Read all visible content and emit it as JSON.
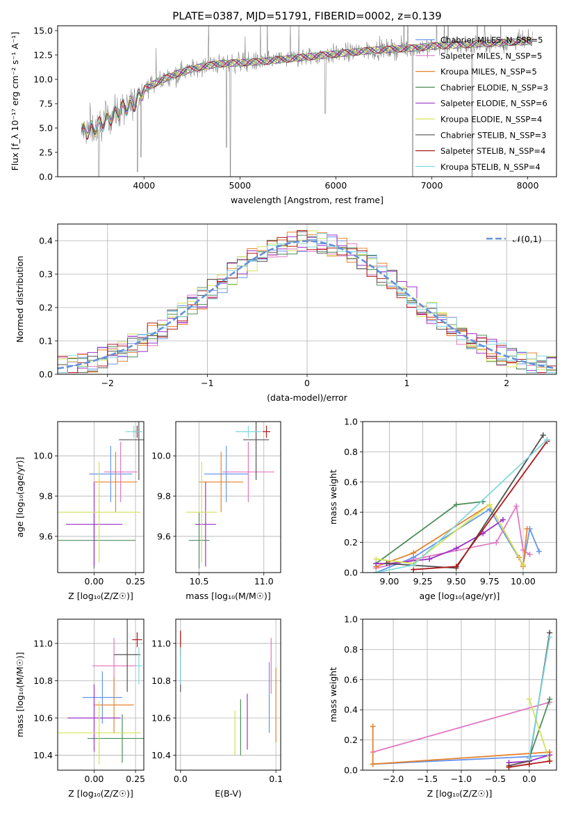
{
  "figure": {
    "title": "PLATE=0387, MJD=51791, FIBERID=0002, z=0.139"
  },
  "colors": {
    "chabrier_miles": "#6495ED",
    "salpeter_miles": "#E377C2",
    "kroupa_miles": "#E6822A",
    "chabrier_elodie": "#4C8C5A",
    "salpeter_elodie": "#9B30C8",
    "kroupa_elodie": "#D4E157",
    "chabrier_stelib": "#505050",
    "salpeter_stelib": "#B01818",
    "kroupa_stelib": "#7FD8DE",
    "data": "#808080",
    "normal_curve": "#6490D8",
    "grid": "#b0b0b0"
  },
  "chart_data": [
    {
      "id": "spectrum",
      "type": "line",
      "title": "PLATE=0387, MJD=51791, FIBERID=0002, z=0.139",
      "xlabel": "wavelength [Angstrom, rest frame]",
      "ylabel": "Flux [f_λ 10⁻¹⁷ erg cm⁻² s⁻¹ A⁻¹]",
      "xlim": [
        3100,
        8300
      ],
      "ylim": [
        0,
        15.5
      ],
      "xticks": [
        "4000",
        "5000",
        "6000",
        "7000",
        "8000"
      ],
      "yticks": [
        "0.0",
        "2.5",
        "5.0",
        "7.5",
        "10.0",
        "12.5",
        "15.0"
      ],
      "grid": false,
      "legend_position": "top-right",
      "legend": [
        "Chabrier MILES, N_SSP=5",
        "Salpeter MILES, N_SSP=5",
        "Kroupa MILES, N_SSP=5",
        "Chabrier ELODIE, N_SSP=3",
        "Salpeter ELODIE, N_SSP=6",
        "Kroupa ELODIE, N_SSP=4",
        "Chabrier STELIB, N_SSP=3",
        "Salpeter STELIB, N_SSP=4",
        "Kroupa STELIB, N_SSP=4"
      ],
      "continuum_x": [
        3350,
        3500,
        3700,
        3900,
        4000,
        4200,
        4400,
        4600,
        4800,
        5000,
        5200,
        5400,
        5600,
        5800,
        6000,
        6200,
        6400,
        6600,
        6800,
        7000,
        7200,
        7400,
        7600,
        7800,
        8050
      ],
      "continuum_y": [
        4.6,
        5.0,
        6.5,
        7.6,
        9.0,
        10.0,
        10.8,
        11.3,
        11.6,
        11.7,
        11.8,
        12.0,
        12.2,
        12.4,
        12.6,
        12.8,
        13.0,
        13.1,
        13.2,
        13.4,
        13.5,
        13.6,
        13.7,
        13.8,
        13.9
      ],
      "absorption_lines": [
        [
          3530,
          0.0
        ],
        [
          3933,
          0.5
        ],
        [
          3968,
          2.0
        ],
        [
          4861,
          3.0
        ],
        [
          4900,
          0.0
        ],
        [
          5890,
          6.5
        ],
        [
          6800,
          0.0
        ],
        [
          7420,
          0.0
        ]
      ]
    },
    {
      "id": "residuals",
      "type": "histogram",
      "xlabel": "(data-model)/error",
      "ylabel": "Normed distribution",
      "xlim": [
        -2.5,
        2.5
      ],
      "ylim": [
        0,
        0.45
      ],
      "xticks": [
        "−2",
        "−1",
        "0",
        "1",
        "2"
      ],
      "yticks": [
        "0.0",
        "0.1",
        "0.2",
        "0.3",
        "0.4"
      ],
      "grid": true,
      "legend_position": "top-right",
      "legend": [
        "𝒩(0,1)"
      ],
      "bin_width": 0.1
    },
    {
      "id": "age_vs_Z",
      "type": "scatter",
      "xlabel": "Z [log₁₀(Z/Z☉)]",
      "ylabel": "age  [log₁₀(age/yr)]",
      "xlim": [
        -0.22,
        0.3
      ],
      "ylim": [
        9.42,
        10.17
      ],
      "xticks": [
        "0.00",
        "0.25"
      ],
      "yticks": [
        "9.6",
        "9.8",
        "10.0"
      ],
      "grid": true,
      "errorbars": [
        {
          "x": 0.1,
          "xerr": 0.13,
          "y": 9.91,
          "yerr": 0.14
        },
        {
          "x": 0.16,
          "xerr": 0.1,
          "y": 9.92,
          "yerr": 0.15
        },
        {
          "x": 0.13,
          "xerr": 0.13,
          "y": 9.87,
          "yerr": 0.15
        },
        {
          "x": 0.0,
          "xerr": 0.25,
          "y": 9.58,
          "yerr": 0.14
        },
        {
          "x": 0.0,
          "xerr": 0.17,
          "y": 9.66,
          "yerr": 0.21
        },
        {
          "x": 0.03,
          "xerr": 0.25,
          "y": 9.72,
          "yerr": 0.25
        },
        {
          "x": 0.27,
          "xerr": 0.12,
          "y": 10.08,
          "yerr": 0.2
        },
        {
          "x": 0.26,
          "xerr": 0.02,
          "y": 10.12,
          "yerr": 0.03
        },
        {
          "x": 0.24,
          "xerr": 0.05,
          "y": 10.12,
          "yerr": 0.03
        }
      ]
    },
    {
      "id": "age_vs_mass",
      "type": "scatter",
      "xlabel": "mass [log₁₀(M/M☉)]",
      "ylabel": "",
      "xlim": [
        10.32,
        11.13
      ],
      "ylim": [
        9.42,
        10.17
      ],
      "xticks": [
        "10.5",
        "11.0"
      ],
      "yticks": [
        "9.6",
        "9.8",
        "10.0"
      ],
      "grid": true,
      "errorbars": [
        {
          "x": 10.71,
          "xerr": 0.17,
          "y": 9.91,
          "yerr": 0.14
        },
        {
          "x": 10.88,
          "xerr": 0.2,
          "y": 9.92,
          "yerr": 0.15
        },
        {
          "x": 10.67,
          "xerr": 0.17,
          "y": 9.87,
          "yerr": 0.15
        },
        {
          "x": 10.5,
          "xerr": 0.08,
          "y": 9.58,
          "yerr": 0.14
        },
        {
          "x": 10.55,
          "xerr": 0.08,
          "y": 9.66,
          "yerr": 0.21
        },
        {
          "x": 10.52,
          "xerr": 0.12,
          "y": 9.72,
          "yerr": 0.25
        },
        {
          "x": 10.94,
          "xerr": 0.1,
          "y": 10.08,
          "yerr": 0.2
        },
        {
          "x": 11.02,
          "xerr": 0.03,
          "y": 10.12,
          "yerr": 0.03
        },
        {
          "x": 10.88,
          "xerr": 0.1,
          "y": 10.12,
          "yerr": 0.03
        }
      ]
    },
    {
      "id": "weight_vs_age",
      "type": "line",
      "xlabel": "age  [log₁₀(age/yr)]",
      "ylabel": "mass weight",
      "xlim": [
        8.8,
        10.25
      ],
      "ylim": [
        0,
        1.0
      ],
      "xticks": [
        "9.00",
        "9.25",
        "9.50",
        "9.75",
        "10.00"
      ],
      "yticks": [
        "0.0",
        "0.2",
        "0.4",
        "0.6",
        "0.8",
        "1.0"
      ],
      "grid": true,
      "series": [
        {
          "x": [
            8.9,
            9.18,
            9.75,
            10.0,
            10.05,
            10.12
          ],
          "y": [
            0.0,
            0.1,
            0.42,
            0.05,
            0.29,
            0.14
          ]
        },
        {
          "x": [
            8.9,
            9.25,
            9.8,
            9.95,
            10.0,
            10.05
          ],
          "y": [
            0.03,
            0.1,
            0.2,
            0.44,
            0.15,
            0.12
          ]
        },
        {
          "x": [
            8.9,
            9.18,
            9.75,
            9.97,
            10.0,
            10.03
          ],
          "y": [
            0.04,
            0.13,
            0.45,
            0.1,
            0.04,
            0.29
          ]
        },
        {
          "x": [
            8.9,
            9.5,
            9.7
          ],
          "y": [
            0.06,
            0.45,
            0.47
          ]
        },
        {
          "x": [
            8.9,
            9.0,
            9.3,
            9.5,
            9.7,
            9.85
          ],
          "y": [
            0.06,
            0.06,
            0.09,
            0.16,
            0.26,
            0.35
          ]
        },
        {
          "x": [
            8.9,
            9.18,
            9.75,
            10.0
          ],
          "y": [
            0.09,
            0.06,
            0.45,
            0.05
          ]
        },
        {
          "x": [
            8.98,
            9.5,
            10.15
          ],
          "y": [
            0.06,
            0.03,
            0.91
          ]
        },
        {
          "x": [
            9.18,
            9.5,
            10.18
          ],
          "y": [
            0.02,
            0.04,
            0.87
          ]
        },
        {
          "x": [
            8.9,
            9.18,
            10.18
          ],
          "y": [
            0.0,
            0.05,
            0.88
          ]
        }
      ]
    },
    {
      "id": "mass_vs_Z",
      "type": "scatter",
      "xlabel": "Z [log₁₀(Z/Z☉)]",
      "ylabel": "mass [log₁₀(M/M☉)]",
      "xlim": [
        -0.22,
        0.3
      ],
      "ylim": [
        10.32,
        11.13
      ],
      "xticks": [
        "0.00",
        "0.25"
      ],
      "yticks": [
        "10.4",
        "10.6",
        "10.8",
        "11.0"
      ],
      "grid": true,
      "errorbars": [
        {
          "x": 0.05,
          "xerr": 0.12,
          "y": 10.71,
          "yerr": 0.14
        },
        {
          "x": 0.12,
          "xerr": 0.13,
          "y": 10.88,
          "yerr": 0.15
        },
        {
          "x": 0.12,
          "xerr": 0.12,
          "y": 10.67,
          "yerr": 0.15
        },
        {
          "x": 0.17,
          "xerr": 0.21,
          "y": 10.49,
          "yerr": 0.13
        },
        {
          "x": 0.0,
          "xerr": 0.16,
          "y": 10.6,
          "yerr": 0.18
        },
        {
          "x": 0.03,
          "xerr": 0.25,
          "y": 10.52,
          "yerr": 0.17
        },
        {
          "x": 0.2,
          "xerr": 0.08,
          "y": 10.94,
          "yerr": 0.2
        },
        {
          "x": 0.26,
          "xerr": 0.03,
          "y": 11.02,
          "yerr": 0.04
        },
        {
          "x": 0.27,
          "xerr": 0.02,
          "y": 10.88,
          "yerr": 0.1
        }
      ]
    },
    {
      "id": "mass_vs_ebv",
      "type": "scatter",
      "xlabel": "E(B-V)",
      "ylabel": "",
      "xlim": [
        -0.005,
        0.105
      ],
      "ylim": [
        10.32,
        11.13
      ],
      "xticks": [
        "0.0",
        "0.1"
      ],
      "yticks": [
        "10.4",
        "10.6",
        "10.8",
        "11.0"
      ],
      "grid": true,
      "errorbars": [
        {
          "x": 0.093,
          "xerr": 0,
          "y": 10.71,
          "yerr": 0.19
        },
        {
          "x": 0.095,
          "xerr": 0,
          "y": 10.88,
          "yerr": 0.15
        },
        {
          "x": 0.1,
          "xerr": 0,
          "y": 10.67,
          "yerr": 0.2
        },
        {
          "x": 0.063,
          "xerr": 0,
          "y": 10.55,
          "yerr": 0.15
        },
        {
          "x": 0.07,
          "xerr": 0,
          "y": 10.58,
          "yerr": 0.15
        },
        {
          "x": 0.057,
          "xerr": 0,
          "y": 10.52,
          "yerr": 0.12
        },
        {
          "x": 0.0,
          "xerr": 0,
          "y": 10.9,
          "yerr": 0.16
        },
        {
          "x": 0.0,
          "xerr": 0,
          "y": 11.0,
          "yerr": 0.07
        },
        {
          "x": 0.0,
          "xerr": 0,
          "y": 10.88,
          "yerr": 0.1
        }
      ]
    },
    {
      "id": "weight_vs_Z",
      "type": "line",
      "xlabel": "Z [log₁₀(Z/Z☉)]",
      "ylabel": "mass weight",
      "xlim": [
        -2.45,
        0.4
      ],
      "ylim": [
        0,
        1.0
      ],
      "xticks": [
        "−2.0",
        "−1.5",
        "−1.0",
        "−0.5",
        "0.0"
      ],
      "yticks": [
        "0.0",
        "0.2",
        "0.4",
        "0.6",
        "0.8",
        "1.0"
      ],
      "grid": true,
      "series": [
        {
          "x": [
            -2.3,
            0.0,
            0.3
          ],
          "y": [
            0.04,
            0.09,
            0.1
          ]
        },
        {
          "x": [
            -2.3,
            0.3
          ],
          "y": [
            0.12,
            0.45
          ]
        },
        {
          "x": [
            -2.3,
            -2.3,
            0.3
          ],
          "y": [
            0.29,
            0.04,
            0.12
          ]
        },
        {
          "x": [
            0.0,
            0.3
          ],
          "y": [
            0.08,
            0.47
          ]
        },
        {
          "x": [
            -0.3,
            0.0,
            0.3
          ],
          "y": [
            0.05,
            0.06,
            0.1
          ]
        },
        {
          "x": [
            0.0,
            0.3
          ],
          "y": [
            0.47,
            0.06
          ]
        },
        {
          "x": [
            -0.3,
            0.0,
            0.3
          ],
          "y": [
            0.03,
            0.06,
            0.91
          ]
        },
        {
          "x": [
            -0.3,
            0.0,
            0.3
          ],
          "y": [
            0.02,
            0.04,
            0.06
          ]
        },
        {
          "x": [
            0.0,
            0.3
          ],
          "y": [
            0.08,
            0.88
          ]
        }
      ]
    }
  ]
}
